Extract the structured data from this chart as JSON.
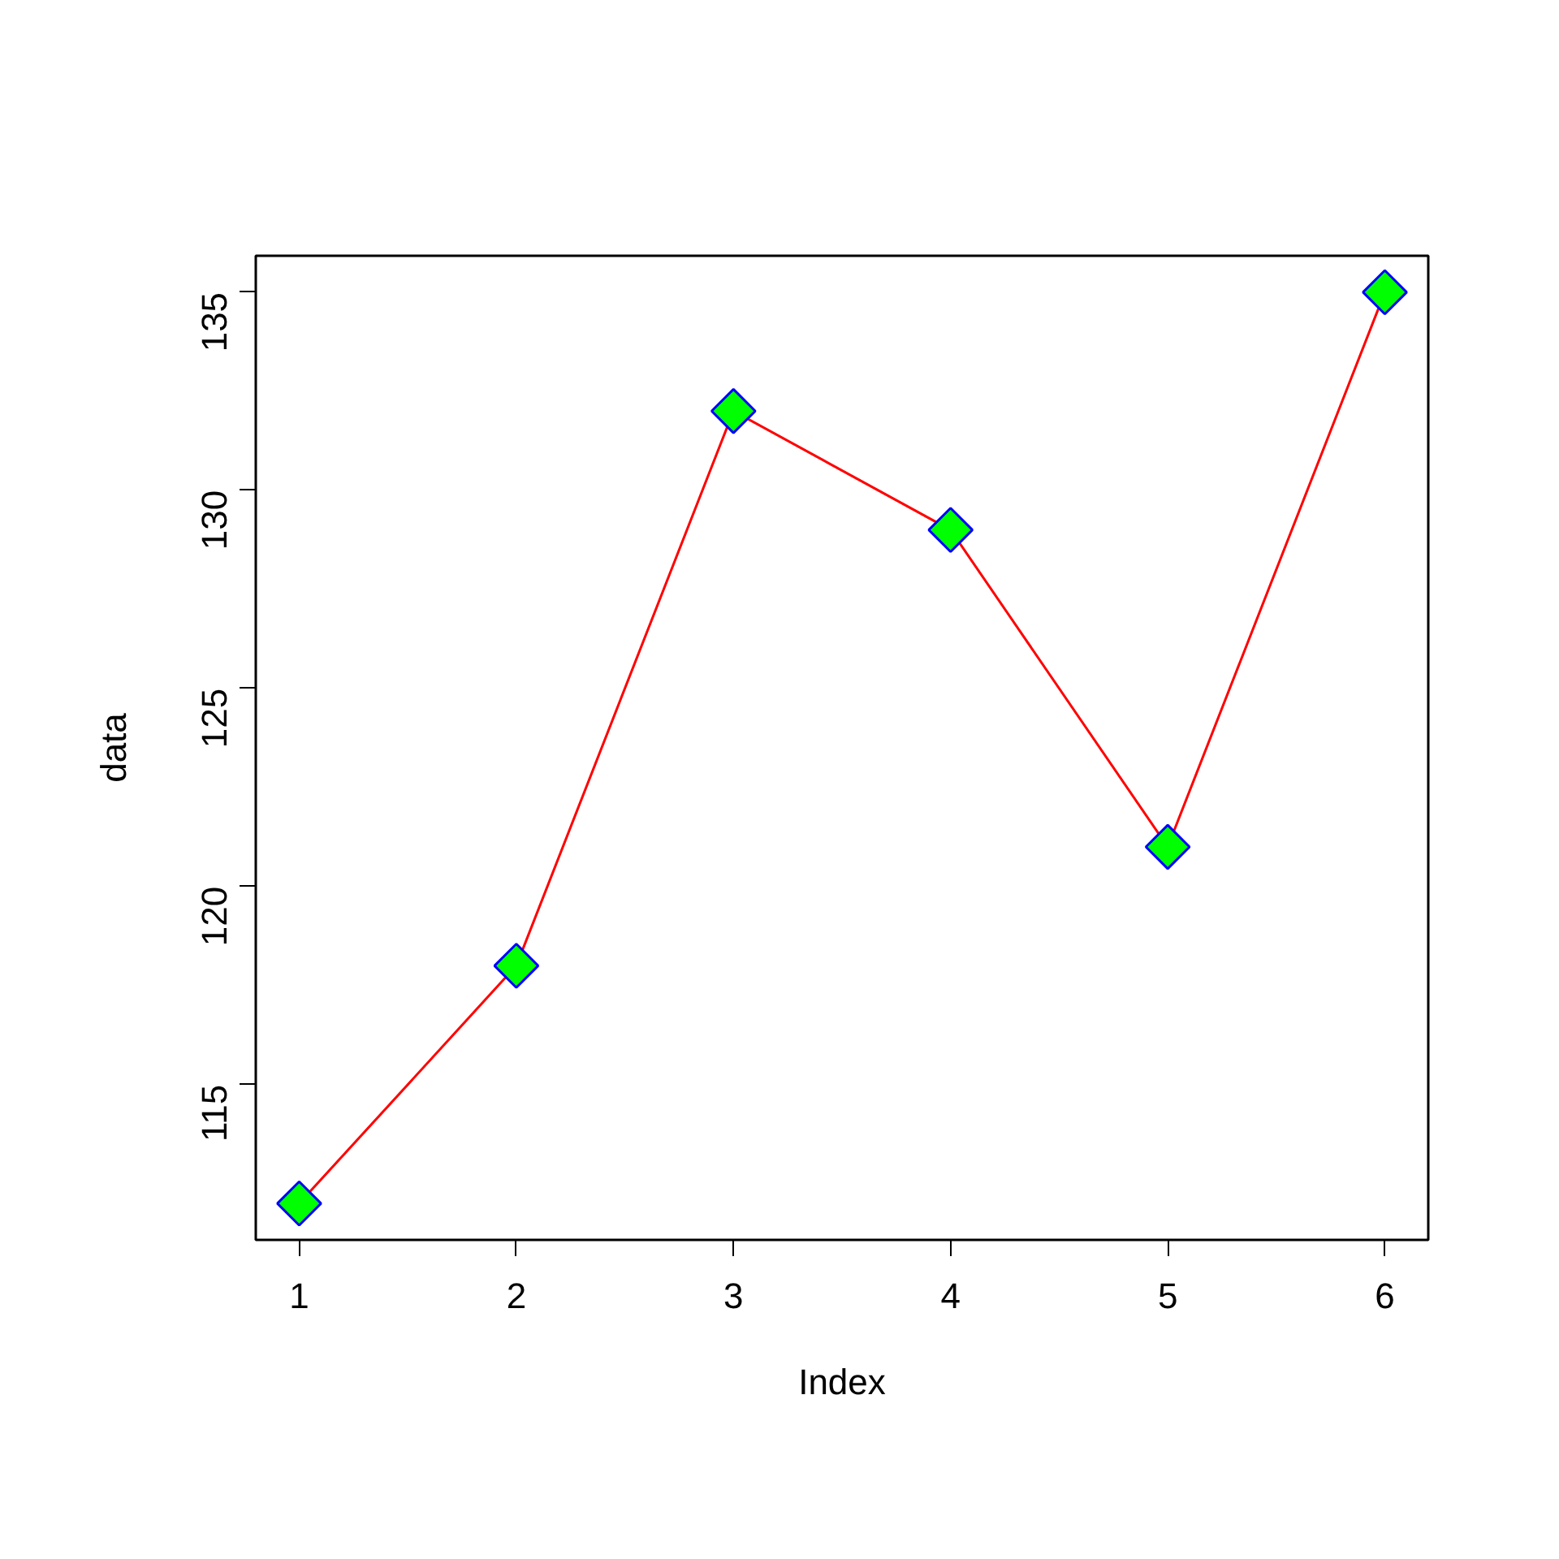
{
  "chart_data": {
    "type": "line",
    "xlabel": "Index",
    "ylabel": "data",
    "x": [
      1,
      2,
      3,
      4,
      5,
      6
    ],
    "series": [
      {
        "color": "#ff0000",
        "colors": [
          "#00ff00",
          "#00ff00",
          "#00ff00",
          "#00ff00",
          "#00ff00",
          "#00ff00"
        ],
        "values": [
          112,
          118,
          132,
          129,
          121,
          135
        ]
      }
    ],
    "xlim": [
      0.8,
      6.2
    ],
    "xticks": [
      1,
      2,
      3,
      4,
      5,
      6
    ],
    "ylim": [
      111.08,
      135.92
    ],
    "yticks": [
      115,
      120,
      125,
      130,
      135
    ],
    "marker": "diamond",
    "line_style": "solid",
    "grid": false
  }
}
